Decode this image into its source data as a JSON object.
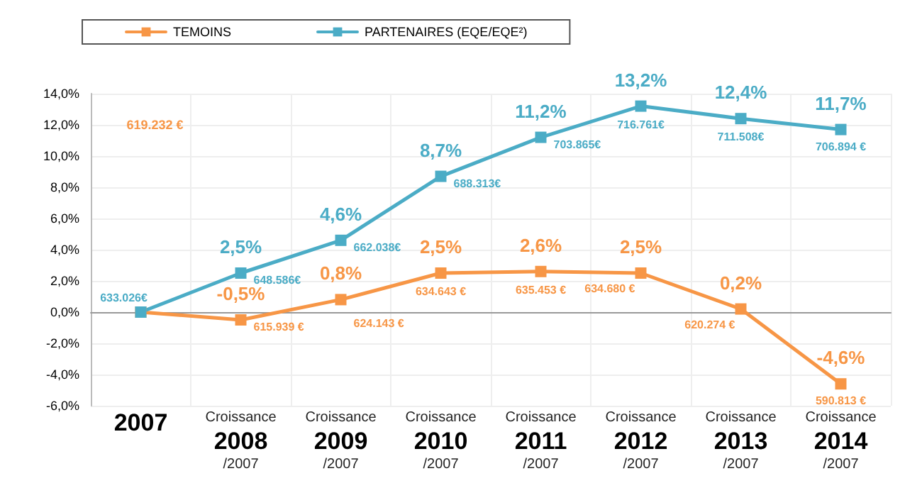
{
  "chart_data": {
    "type": "line",
    "categories": [
      "2007",
      "Croissance\n2008\n/2007",
      "Croissance\n2009\n/2007",
      "Croissance\n2010\n/2007",
      "Croissance\n2011\n/2007",
      "Croissance\n2012\n/2007",
      "Croissance\n2013\n/2007",
      "Croissance\n2014\n/2007"
    ],
    "series": [
      {
        "name": "TEMOINS",
        "color": "#f79646",
        "values": [
          0,
          -0.5,
          0.8,
          2.5,
          2.6,
          2.5,
          0.2,
          -4.6
        ],
        "value_labels": [
          null,
          "-0,5%",
          "0,8%",
          "2,5%",
          "2,6%",
          "2,5%",
          "0,2%",
          "-4,6%"
        ]
      },
      {
        "name": "PARTENAIRES (EQE/EQE²)",
        "color": "#4bacc6",
        "values": [
          0,
          2.5,
          4.6,
          8.7,
          11.2,
          13.2,
          12.4,
          11.7
        ],
        "value_labels": [
          null,
          "2,5%",
          "4,6%",
          "8,7%",
          "11,2%",
          "13,2%",
          "12,4%",
          "11,7%"
        ]
      }
    ],
    "ylim": [
      -6,
      14
    ],
    "yticks": [
      {
        "value": -6,
        "label": "-6,0%"
      },
      {
        "value": -4,
        "label": "-4,0%"
      },
      {
        "value": -2,
        "label": "-2,0%"
      },
      {
        "value": 0,
        "label": "0,0%"
      },
      {
        "value": 2,
        "label": "2,0%"
      },
      {
        "value": 4,
        "label": "4,0%"
      },
      {
        "value": 6,
        "label": "6,0%"
      },
      {
        "value": 8,
        "label": "8,0%"
      },
      {
        "value": 10,
        "label": "10,0%"
      },
      {
        "value": 12,
        "label": "12,0%"
      },
      {
        "value": 14,
        "label": "14,0%"
      }
    ],
    "grid": true,
    "legend": "top",
    "marker": "square",
    "line_style": "solid",
    "annotations": [
      "619.232 €",
      {
        "text": "633.026€",
        "x": "2007",
        "y": 0
      },
      {
        "text": "648.586€",
        "x": "Croissance\n2008\n/2007",
        "y": 2.5
      },
      {
        "text": "662.038€",
        "x": "Croissance\n2009\n/2007",
        "y": 4.6
      },
      {
        "text": "688.313€",
        "x": "Croissance\n2010\n/2007",
        "y": 8.7
      },
      {
        "text": "703.865€",
        "x": "Croissance\n2011\n/2007",
        "y": 11.2
      },
      {
        "text": "716.761€",
        "x": "Croissance\n2012\n/2007",
        "y": 13.2
      },
      {
        "text": "711.508€",
        "x": "Croissance\n2013\n/2007",
        "y": 12.4
      },
      {
        "text": "706.894 €",
        "x": "Croissance\n2014\n/2007",
        "y": 11.7
      },
      {
        "text": "615.939 €",
        "x": "Croissance\n2008\n/2007",
        "y": -0.5
      },
      {
        "text": "624.143 €",
        "x": "Croissance\n2009\n/2007",
        "y": 0.8
      },
      {
        "text": "634.643 €",
        "x": "Croissance\n2010\n/2007",
        "y": 2.5
      },
      {
        "text": "635.453 €",
        "x": "Croissance\n2011\n/2007",
        "y": 2.6
      },
      {
        "text": "634.680 €",
        "x": "Croissance\n2012\n/2007",
        "y": 2.5
      },
      {
        "text": "620.274 €",
        "x": "Croissance\n2013\n/2007",
        "y": 0.2
      },
      {
        "text": "590.813 €",
        "x": "Croissance\n2014\n/2007",
        "y": -4.6
      }
    ]
  }
}
